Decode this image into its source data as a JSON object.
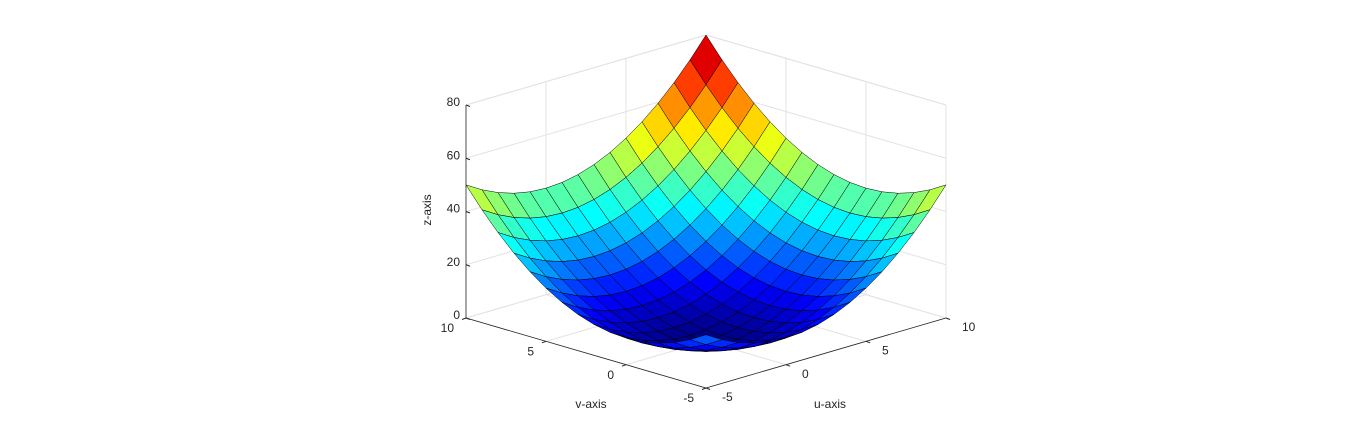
{
  "chart_data": {
    "type": "surface",
    "xlabel": "u-axis",
    "ylabel": "v-axis",
    "zlabel": "z-axis",
    "x": [
      -5,
      -4,
      -3,
      -2,
      -1,
      0,
      1,
      2,
      3,
      4,
      5,
      6,
      7,
      8,
      9,
      10
    ],
    "y": [
      -5,
      -4,
      -3,
      -2,
      -1,
      0,
      1,
      2,
      3,
      4,
      5,
      6,
      7,
      8,
      9,
      10
    ],
    "z": [
      [
        20,
        16.4,
        13.6,
        11.6,
        10.4,
        10,
        10.4,
        11.6,
        13.6,
        16.4,
        20,
        24.4,
        29.6,
        35.6,
        42.4,
        50
      ],
      [
        16.4,
        12.8,
        10,
        8,
        6.8,
        6.4,
        6.8,
        8,
        10,
        12.8,
        16.4,
        20.8,
        26,
        32,
        38.8,
        46.4
      ],
      [
        13.6,
        10,
        7.2,
        5.2,
        4,
        3.6,
        4,
        5.2,
        7.2,
        10,
        13.6,
        18,
        23.2,
        29.2,
        36,
        43.6
      ],
      [
        11.6,
        8,
        5.2,
        3.2,
        2,
        1.6,
        2,
        3.2,
        5.2,
        8,
        11.6,
        16,
        21.2,
        27.2,
        34,
        41.6
      ],
      [
        10.4,
        6.8,
        4,
        2,
        0.8,
        0.4,
        0.8,
        2,
        4,
        6.8,
        10.4,
        14.8,
        20,
        26,
        32.8,
        40.4
      ],
      [
        10,
        6.4,
        3.6,
        1.6,
        0.4,
        0,
        0.4,
        1.6,
        3.6,
        6.4,
        10,
        14.4,
        19.6,
        25.6,
        32.4,
        40
      ],
      [
        10.4,
        6.8,
        4,
        2,
        0.8,
        0.4,
        0.8,
        2,
        4,
        6.8,
        10.4,
        14.8,
        20,
        26,
        32.8,
        40.4
      ],
      [
        11.6,
        8,
        5.2,
        3.2,
        2,
        1.6,
        2,
        3.2,
        5.2,
        8,
        11.6,
        16,
        21.2,
        27.2,
        34,
        41.6
      ],
      [
        13.6,
        10,
        7.2,
        5.2,
        4,
        3.6,
        4,
        5.2,
        7.2,
        10,
        13.6,
        18,
        23.2,
        29.2,
        36,
        43.6
      ],
      [
        16.4,
        12.8,
        10,
        8,
        6.8,
        6.4,
        6.8,
        8,
        10,
        12.8,
        16.4,
        20.8,
        26,
        32,
        38.8,
        46.4
      ],
      [
        20,
        16.4,
        13.6,
        11.6,
        10.4,
        10,
        10.4,
        11.6,
        13.6,
        16.4,
        20,
        24.4,
        29.6,
        35.6,
        42.4,
        50
      ],
      [
        24.4,
        20.8,
        18,
        16,
        14.8,
        14.4,
        14.8,
        16,
        18,
        20.8,
        24.4,
        28.8,
        34,
        40,
        46.8,
        54.4
      ],
      [
        29.6,
        26,
        23.2,
        21.2,
        20,
        19.6,
        20,
        21.2,
        23.2,
        26,
        29.6,
        34,
        39.2,
        45.2,
        52,
        59.6
      ],
      [
        35.6,
        32,
        29.2,
        27.2,
        26,
        25.6,
        26,
        27.2,
        29.2,
        32,
        35.6,
        40,
        45.2,
        51.2,
        58,
        65.6
      ],
      [
        42.4,
        38.8,
        36,
        34,
        32.8,
        32.4,
        32.8,
        34,
        36,
        38.8,
        42.4,
        46.8,
        52,
        58,
        64.8,
        72.4
      ],
      [
        50,
        46.4,
        43.6,
        41.6,
        40.4,
        40,
        40.4,
        41.6,
        43.6,
        46.4,
        50,
        54.4,
        59.6,
        65.6,
        72.4,
        80
      ]
    ],
    "xlim": [
      -5,
      10
    ],
    "ylim": [
      -5,
      10
    ],
    "zlim": [
      0,
      80
    ],
    "xticks": [
      -5,
      0,
      5,
      10
    ],
    "yticks": [
      -5,
      0,
      5,
      10
    ],
    "zticks": [
      0,
      20,
      40,
      60,
      80
    ],
    "colormap": "jet",
    "edgecolor": "#000000",
    "grid": true
  }
}
